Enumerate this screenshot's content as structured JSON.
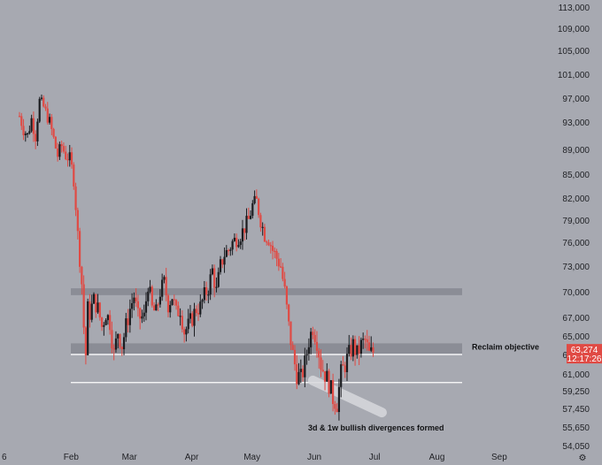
{
  "chart_data": {
    "type": "candlestick",
    "y_ticks": [
      "113,000",
      "109,000",
      "105,000",
      "101,000",
      "97,000",
      "93,000",
      "89,000",
      "85,000",
      "82,000",
      "79,000",
      "76,000",
      "73,000",
      "70,000",
      "67,000",
      "65,000",
      "63,000",
      "61,000",
      "59,250",
      "57,450",
      "55,650",
      "54,050"
    ],
    "y_tick_values": [
      113000,
      109000,
      105000,
      101000,
      97000,
      93000,
      89000,
      85000,
      82000,
      79000,
      76000,
      73000,
      70000,
      67000,
      65000,
      63000,
      61000,
      59250,
      57450,
      55650,
      54050
    ],
    "x_ticks": [
      "6",
      "Feb",
      "Mar",
      "Apr",
      "May",
      "Jun",
      "Jul",
      "Aug",
      "Sep"
    ],
    "x_tick_days": [
      0,
      31,
      60,
      91,
      121,
      152,
      182,
      213,
      244
    ],
    "zones": [
      {
        "low": 69600,
        "high": 70400
      },
      {
        "low": 63100,
        "high": 64200
      }
    ],
    "levels": [
      {
        "value": 63000,
        "label": "Reclaim objective"
      },
      {
        "value": 60100,
        "label": ""
      }
    ],
    "annotation": "3d & 1w bullish divergences formed",
    "divergence_band": {
      "from_day": 146,
      "from_value": 60500,
      "to_day": 183,
      "to_value": 57400
    },
    "last_price": "63,274",
    "countdown": "12:17:26",
    "colors": {
      "up": "#1b1c20",
      "down": "#e04a44",
      "zone": "#8b8d96",
      "level": "#ffffff",
      "badge": "#e04a44",
      "background": "#a7a9b1"
    },
    "anchors": [
      [
        0,
        94000
      ],
      [
        2,
        92000
      ],
      [
        4,
        91000
      ],
      [
        6,
        93500
      ],
      [
        8,
        91000
      ],
      [
        10,
        96500
      ],
      [
        12,
        95500
      ],
      [
        15,
        93000
      ],
      [
        17,
        90500
      ],
      [
        19,
        88000
      ],
      [
        21,
        89500
      ],
      [
        23,
        88000
      ],
      [
        25,
        87500
      ],
      [
        27,
        84500
      ],
      [
        28,
        81000
      ],
      [
        29,
        77000
      ],
      [
        30,
        74000
      ],
      [
        31,
        71000
      ],
      [
        32,
        66000
      ],
      [
        33,
        63000
      ],
      [
        34,
        68000
      ],
      [
        35,
        67500
      ],
      [
        37,
        69000
      ],
      [
        39,
        68000
      ],
      [
        41,
        66000
      ],
      [
        43,
        67500
      ],
      [
        45,
        66500
      ],
      [
        47,
        63000
      ],
      [
        49,
        65500
      ],
      [
        51,
        64000
      ],
      [
        53,
        66000
      ],
      [
        55,
        68000
      ],
      [
        57,
        69500
      ],
      [
        59,
        67000
      ],
      [
        62,
        67000
      ],
      [
        64,
        71000
      ],
      [
        66,
        68000
      ],
      [
        68,
        67500
      ],
      [
        70,
        70000
      ],
      [
        72,
        71000
      ],
      [
        74,
        68500
      ],
      [
        76,
        69500
      ],
      [
        78,
        67500
      ],
      [
        80,
        68000
      ],
      [
        82,
        65500
      ],
      [
        84,
        66000
      ],
      [
        86,
        67000
      ],
      [
        88,
        68000
      ],
      [
        90,
        68200
      ],
      [
        92,
        69500
      ],
      [
        94,
        70500
      ],
      [
        96,
        72500
      ],
      [
        98,
        70000
      ],
      [
        100,
        73000
      ],
      [
        102,
        74500
      ],
      [
        104,
        75000
      ],
      [
        106,
        76000
      ],
      [
        108,
        76500
      ],
      [
        110,
        77000
      ],
      [
        112,
        78000
      ],
      [
        114,
        79000
      ],
      [
        116,
        81000
      ],
      [
        118,
        81500
      ],
      [
        120,
        79000
      ],
      [
        122,
        77000
      ],
      [
        124,
        76500
      ],
      [
        126,
        75000
      ],
      [
        128,
        74000
      ],
      [
        130,
        73000
      ],
      [
        132,
        70000
      ],
      [
        134,
        66000
      ],
      [
        136,
        63000
      ],
      [
        138,
        61000
      ],
      [
        140,
        60500
      ],
      [
        142,
        62000
      ],
      [
        144,
        64500
      ],
      [
        146,
        66000
      ],
      [
        148,
        64500
      ],
      [
        150,
        62000
      ],
      [
        152,
        61000
      ],
      [
        154,
        60000
      ],
      [
        156,
        58500
      ],
      [
        158,
        58000
      ],
      [
        160,
        61000
      ],
      [
        162,
        62000
      ],
      [
        164,
        63000
      ],
      [
        166,
        64000
      ],
      [
        168,
        63000
      ],
      [
        170,
        64000
      ],
      [
        172,
        64500
      ],
      [
        174,
        63000
      ],
      [
        176,
        63274
      ]
    ]
  }
}
